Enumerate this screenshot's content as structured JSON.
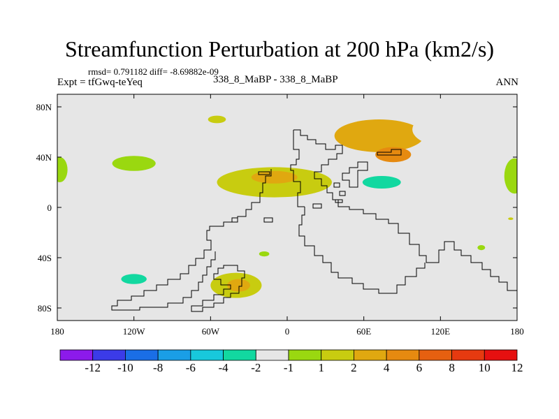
{
  "header": {
    "title": "Streamfunction Perturbation at 200 hPa (km2/s)",
    "stats": "rmsd= 0.791182 diff= -8.69882e-09",
    "experiment": "Expt = tfGwq-teYeq",
    "case": "338_8_MaBP - 338_8_MaBP",
    "season": "ANN"
  },
  "chart_data": {
    "type": "heatmap",
    "title": "Streamfunction Perturbation at 200 hPa (km2/s)",
    "xlabel": "",
    "ylabel": "",
    "xlim": [
      -180,
      180
    ],
    "ylim": [
      -90,
      90
    ],
    "x_ticks": [
      {
        "value": -180,
        "label": "180"
      },
      {
        "value": -120,
        "label": "120W"
      },
      {
        "value": -60,
        "label": "60W"
      },
      {
        "value": 0,
        "label": "0"
      },
      {
        "value": 60,
        "label": "60E"
      },
      {
        "value": 120,
        "label": "120E"
      },
      {
        "value": 180,
        "label": "180"
      }
    ],
    "y_ticks": [
      {
        "value": 80,
        "label": "80N"
      },
      {
        "value": 40,
        "label": "40N"
      },
      {
        "value": 0,
        "label": "0"
      },
      {
        "value": -40,
        "label": "40S"
      },
      {
        "value": -80,
        "label": "80S"
      }
    ],
    "colorbar": {
      "colors": [
        "#8c1aeb",
        "#3b3be8",
        "#1a6ee6",
        "#1a9ee6",
        "#18c8dc",
        "#12d8a0",
        "#e6e6e6",
        "#9ad810",
        "#c8cc10",
        "#e0a810",
        "#e68a10",
        "#e66010",
        "#e63a10",
        "#e61010"
      ],
      "labels": [
        "-12",
        "-10",
        "-8",
        "-6",
        "-4",
        "-2",
        "-1",
        "1",
        "2",
        "4",
        "6",
        "8",
        "10",
        "12"
      ]
    },
    "regions": [
      {
        "name": "pacific-north-high",
        "lon": 72,
        "lat": 57,
        "rlon": 35,
        "rlat": 13,
        "value": 2
      },
      {
        "name": "pacific-north-core",
        "lon": 83,
        "lat": 42,
        "rlon": 14,
        "rlat": 6,
        "value": 4
      },
      {
        "name": "india-low-band",
        "lon": 80,
        "lat": 20,
        "rlon": 42,
        "rlat": 10,
        "value": -2
      },
      {
        "name": "india-low-core",
        "lon": 74,
        "lat": 20,
        "rlon": 15,
        "rlat": 5,
        "value": -4
      },
      {
        "name": "pacific-northeast-arm",
        "lon": 132,
        "lat": 62,
        "rlon": 34,
        "rlat": 15,
        "value": -2
      },
      {
        "name": "pacific-east-arm",
        "lon": 138,
        "lat": 40,
        "rlon": 14,
        "rlat": 18,
        "value": -2
      },
      {
        "name": "atlantic-high-band",
        "lon": -10,
        "lat": 20,
        "rlon": 45,
        "rlat": 12,
        "value": 1
      },
      {
        "name": "atlantic-high-core",
        "lon": -10,
        "lat": 24,
        "rlon": 18,
        "rlat": 5,
        "value": 2
      },
      {
        "name": "nw-pacific-low",
        "lon": -120,
        "lat": 35,
        "rlon": 17,
        "rlat": 6,
        "value": -1
      },
      {
        "name": "dateline-low",
        "lon": -178,
        "lat": 30,
        "rlon": 6,
        "rlat": 10,
        "value": -1
      },
      {
        "name": "east-pacific-edge-low",
        "lon": 178,
        "lat": 25,
        "rlon": 8,
        "rlat": 14,
        "value": -1
      },
      {
        "name": "arctic-small-high",
        "lon": -55,
        "lat": 70,
        "rlon": 7,
        "rlat": 3,
        "value": 1
      },
      {
        "name": "south-pacific-low",
        "lon": -125,
        "lat": -60,
        "rlon": 20,
        "rlat": 12,
        "value": -2
      },
      {
        "name": "south-pacific-low-core",
        "lon": -120,
        "lat": -57,
        "rlon": 10,
        "rlat": 4,
        "value": -4
      },
      {
        "name": "south-atlantic-high",
        "lon": -40,
        "lat": -62,
        "rlon": 20,
        "rlat": 10,
        "value": 1
      },
      {
        "name": "south-atlantic-high-core",
        "lon": -38,
        "lat": -62,
        "rlon": 9,
        "rlat": 5,
        "value": 2
      },
      {
        "name": "subtropical-small-low",
        "lon": -18,
        "lat": -37,
        "rlon": 4,
        "rlat": 2,
        "value": -1
      },
      {
        "name": "pacific-south-small-low",
        "lon": 152,
        "lat": -32,
        "rlon": 3,
        "rlat": 2,
        "value": -1
      },
      {
        "name": "small-high-east",
        "lon": 175,
        "lat": -9,
        "rlon": 2,
        "rlat": 1,
        "value": 1
      }
    ]
  }
}
